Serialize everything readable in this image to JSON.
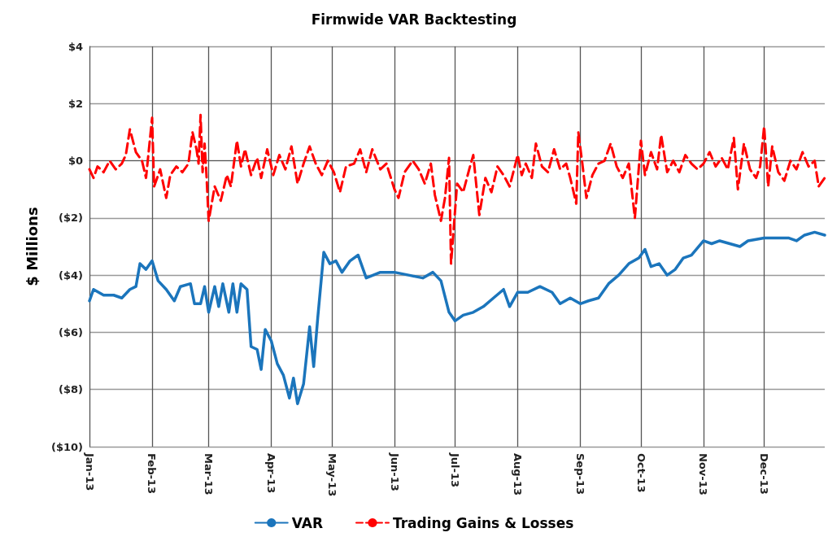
{
  "chart_data": {
    "type": "line",
    "title": "Firmwide VAR Backtesting",
    "ylabel": "$ Millions",
    "legend": "bottom",
    "grid": true,
    "marker": "none",
    "xlim": [
      "2013-01-01",
      "2013-12-31"
    ],
    "xticks": [
      {
        "value": "2013-01-01",
        "label": "Jan-13"
      },
      {
        "value": "2013-02-01",
        "label": "Feb-13"
      },
      {
        "value": "2013-03-01",
        "label": "Mar-13"
      },
      {
        "value": "2013-04-01",
        "label": "Apr-13"
      },
      {
        "value": "2013-05-01",
        "label": "May-13"
      },
      {
        "value": "2013-06-01",
        "label": "Jun-13"
      },
      {
        "value": "2013-07-01",
        "label": "Jul-13"
      },
      {
        "value": "2013-08-01",
        "label": "Aug-13"
      },
      {
        "value": "2013-09-01",
        "label": "Sep-13"
      },
      {
        "value": "2013-10-01",
        "label": "Oct-13"
      },
      {
        "value": "2013-11-01",
        "label": "Nov-13"
      },
      {
        "value": "2013-12-01",
        "label": "Dec-13"
      }
    ],
    "ylim": [
      -10,
      4
    ],
    "yticks": [
      {
        "value": -10,
        "label": "($10)"
      },
      {
        "value": -8,
        "label": "($8)"
      },
      {
        "value": -6,
        "label": "($6)"
      },
      {
        "value": -4,
        "label": "($4)"
      },
      {
        "value": -2,
        "label": "($2)"
      },
      {
        "value": 0,
        "label": "$0"
      },
      {
        "value": 2,
        "label": "$2"
      },
      {
        "value": 4,
        "label": "$4"
      }
    ],
    "series": [
      {
        "name": "VAR",
        "color": "#1b75bc",
        "line_style": "solid",
        "x": [
          "2013-01-01",
          "2013-01-03",
          "2013-01-08",
          "2013-01-13",
          "2013-01-17",
          "2013-01-21",
          "2013-01-24",
          "2013-01-26",
          "2013-01-29",
          "2013-02-01",
          "2013-02-04",
          "2013-02-08",
          "2013-02-12",
          "2013-02-15",
          "2013-02-20",
          "2013-02-22",
          "2013-02-25",
          "2013-02-27",
          "2013-03-01",
          "2013-03-04",
          "2013-03-06",
          "2013-03-08",
          "2013-03-11",
          "2013-03-13",
          "2013-03-15",
          "2013-03-17",
          "2013-03-20",
          "2013-03-22",
          "2013-03-25",
          "2013-03-27",
          "2013-03-29",
          "2013-04-01",
          "2013-04-04",
          "2013-04-07",
          "2013-04-10",
          "2013-04-12",
          "2013-04-14",
          "2013-04-17",
          "2013-04-20",
          "2013-04-22",
          "2013-04-24",
          "2013-04-27",
          "2013-04-30",
          "2013-05-03",
          "2013-05-06",
          "2013-05-10",
          "2013-05-14",
          "2013-05-18",
          "2013-05-25",
          "2013-06-01",
          "2013-06-08",
          "2013-06-15",
          "2013-06-20",
          "2013-06-24",
          "2013-06-28",
          "2013-07-01",
          "2013-07-05",
          "2013-07-10",
          "2013-07-15",
          "2013-07-20",
          "2013-07-25",
          "2013-07-28",
          "2013-08-01",
          "2013-08-06",
          "2013-08-12",
          "2013-08-18",
          "2013-08-22",
          "2013-08-27",
          "2013-09-01",
          "2013-09-05",
          "2013-09-10",
          "2013-09-15",
          "2013-09-20",
          "2013-09-25",
          "2013-09-30",
          "2013-10-03",
          "2013-10-06",
          "2013-10-10",
          "2013-10-14",
          "2013-10-18",
          "2013-10-22",
          "2013-10-26",
          "2013-11-01",
          "2013-11-05",
          "2013-11-09",
          "2013-11-14",
          "2013-11-19",
          "2013-11-23",
          "2013-12-01",
          "2013-12-08",
          "2013-12-13",
          "2013-12-17",
          "2013-12-21",
          "2013-12-26",
          "2013-12-31"
        ],
        "values": [
          -4.9,
          -4.5,
          -4.7,
          -4.7,
          -4.8,
          -4.5,
          -4.4,
          -3.6,
          -3.8,
          -3.5,
          -4.2,
          -4.5,
          -4.9,
          -4.4,
          -4.3,
          -5.0,
          -5.0,
          -4.4,
          -5.3,
          -4.4,
          -5.1,
          -4.3,
          -5.3,
          -4.3,
          -5.3,
          -4.3,
          -4.5,
          -6.5,
          -6.6,
          -7.3,
          -5.9,
          -6.3,
          -7.1,
          -7.5,
          -8.3,
          -7.6,
          -8.5,
          -7.8,
          -5.8,
          -7.2,
          -5.5,
          -3.2,
          -3.6,
          -3.5,
          -3.9,
          -3.5,
          -3.3,
          -4.1,
          -3.9,
          -3.9,
          -4.0,
          -4.1,
          -3.9,
          -4.2,
          -5.3,
          -5.6,
          -5.4,
          -5.3,
          -5.1,
          -4.8,
          -4.5,
          -5.1,
          -4.6,
          -4.6,
          -4.4,
          -4.6,
          -5.0,
          -4.8,
          -5.0,
          -4.9,
          -4.8,
          -4.3,
          -4.0,
          -3.6,
          -3.4,
          -3.1,
          -3.7,
          -3.6,
          -4.0,
          -3.8,
          -3.4,
          -3.3,
          -2.8,
          -2.9,
          -2.8,
          -2.9,
          -3.0,
          -2.8,
          -2.7,
          -2.7,
          -2.7,
          -2.8,
          -2.6,
          -2.5,
          -2.6
        ]
      },
      {
        "name": "Trading Gains & Losses",
        "color": "#ff0000",
        "line_style": "dashed",
        "x": [
          "2013-01-01",
          "2013-01-03",
          "2013-01-05",
          "2013-01-08",
          "2013-01-11",
          "2013-01-14",
          "2013-01-17",
          "2013-01-19",
          "2013-01-21",
          "2013-01-24",
          "2013-01-27",
          "2013-01-29",
          "2013-02-01",
          "2013-02-02",
          "2013-02-05",
          "2013-02-08",
          "2013-02-10",
          "2013-02-13",
          "2013-02-16",
          "2013-02-19",
          "2013-02-21",
          "2013-02-23",
          "2013-02-24",
          "2013-02-25",
          "2013-02-26",
          "2013-02-27",
          "2013-02-28",
          "2013-03-01",
          "2013-03-04",
          "2013-03-07",
          "2013-03-10",
          "2013-03-12",
          "2013-03-15",
          "2013-03-17",
          "2013-03-19",
          "2013-03-22",
          "2013-03-25",
          "2013-03-27",
          "2013-03-30",
          "2013-04-02",
          "2013-04-05",
          "2013-04-08",
          "2013-04-11",
          "2013-04-14",
          "2013-04-17",
          "2013-04-20",
          "2013-04-23",
          "2013-04-26",
          "2013-04-29",
          "2013-05-02",
          "2013-05-05",
          "2013-05-08",
          "2013-05-12",
          "2013-05-15",
          "2013-05-18",
          "2013-05-21",
          "2013-05-25",
          "2013-05-28",
          "2013-06-01",
          "2013-06-03",
          "2013-06-06",
          "2013-06-10",
          "2013-06-13",
          "2013-06-16",
          "2013-06-19",
          "2013-06-21",
          "2013-06-24",
          "2013-06-26",
          "2013-06-28",
          "2013-06-29",
          "2013-07-02",
          "2013-07-05",
          "2013-07-08",
          "2013-07-10",
          "2013-07-13",
          "2013-07-16",
          "2013-07-19",
          "2013-07-22",
          "2013-07-25",
          "2013-07-28",
          "2013-08-01",
          "2013-08-03",
          "2013-08-05",
          "2013-08-08",
          "2013-08-10",
          "2013-08-13",
          "2013-08-16",
          "2013-08-19",
          "2013-08-22",
          "2013-08-25",
          "2013-08-27",
          "2013-08-30",
          "2013-08-31",
          "2013-09-02",
          "2013-09-04",
          "2013-09-07",
          "2013-09-10",
          "2013-09-13",
          "2013-09-16",
          "2013-09-19",
          "2013-09-22",
          "2013-09-25",
          "2013-09-28",
          "2013-10-01",
          "2013-10-03",
          "2013-10-06",
          "2013-10-09",
          "2013-10-11",
          "2013-10-14",
          "2013-10-17",
          "2013-10-20",
          "2013-10-23",
          "2013-10-26",
          "2013-10-29",
          "2013-11-01",
          "2013-11-04",
          "2013-11-07",
          "2013-11-10",
          "2013-11-13",
          "2013-11-16",
          "2013-11-18",
          "2013-11-21",
          "2013-11-24",
          "2013-11-27",
          "2013-11-29",
          "2013-12-01",
          "2013-12-03",
          "2013-12-05",
          "2013-12-08",
          "2013-12-11",
          "2013-12-14",
          "2013-12-17",
          "2013-12-20",
          "2013-12-23",
          "2013-12-26",
          "2013-12-28",
          "2013-12-31"
        ],
        "values": [
          -0.3,
          -0.6,
          -0.2,
          -0.4,
          0.0,
          -0.3,
          -0.1,
          0.2,
          1.1,
          0.3,
          0.0,
          -0.6,
          1.5,
          -0.9,
          -0.3,
          -1.3,
          -0.5,
          -0.2,
          -0.4,
          -0.1,
          1.0,
          0.4,
          -0.1,
          1.6,
          -0.4,
          0.6,
          -0.6,
          -2.1,
          -0.9,
          -1.4,
          -0.5,
          -0.9,
          0.7,
          -0.2,
          0.4,
          -0.5,
          0.1,
          -0.6,
          0.4,
          -0.5,
          0.2,
          -0.3,
          0.5,
          -0.8,
          -0.1,
          0.5,
          -0.1,
          -0.5,
          0.0,
          -0.4,
          -1.1,
          -0.2,
          -0.1,
          0.4,
          -0.4,
          0.4,
          -0.3,
          -0.1,
          -1.0,
          -1.3,
          -0.4,
          0.0,
          -0.3,
          -0.8,
          -0.1,
          -1.2,
          -2.1,
          -1.3,
          0.1,
          -3.6,
          -0.8,
          -1.1,
          -0.3,
          0.2,
          -1.9,
          -0.6,
          -1.1,
          -0.2,
          -0.5,
          -0.9,
          0.2,
          -0.5,
          -0.1,
          -0.6,
          0.6,
          -0.2,
          -0.4,
          0.4,
          -0.3,
          -0.1,
          -0.6,
          -1.5,
          1.0,
          -0.1,
          -1.3,
          -0.5,
          -0.1,
          0.0,
          0.6,
          -0.2,
          -0.6,
          -0.1,
          -2.0,
          0.7,
          -0.5,
          0.3,
          -0.3,
          0.9,
          -0.4,
          0.0,
          -0.4,
          0.2,
          -0.1,
          -0.3,
          -0.1,
          0.3,
          -0.2,
          0.1,
          -0.3,
          0.8,
          -1.0,
          0.6,
          -0.3,
          -0.6,
          -0.2,
          1.2,
          -0.9,
          0.5,
          -0.4,
          -0.7,
          0.0,
          -0.3,
          0.3,
          -0.2,
          0.0,
          -0.9,
          -0.6
        ]
      }
    ]
  }
}
